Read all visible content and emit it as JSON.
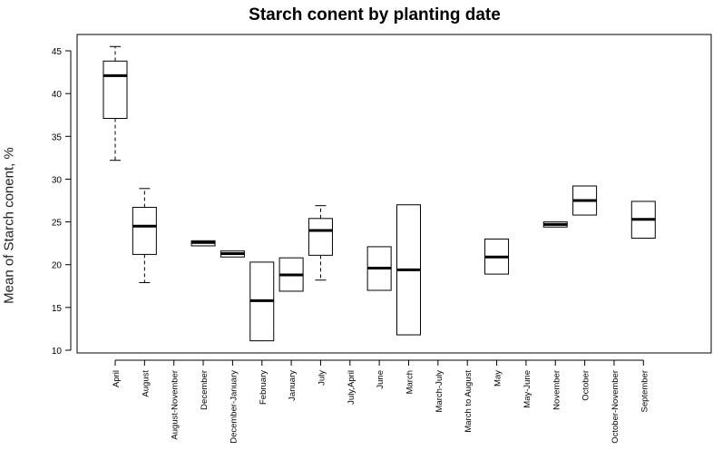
{
  "chart_data": {
    "type": "box",
    "title": "Starch conent by planting date",
    "xlabel": "",
    "ylabel": "Mean of Starch conent, %",
    "ylim": [
      10,
      46
    ],
    "y_ticks": [
      10,
      15,
      20,
      25,
      30,
      35,
      40,
      45
    ],
    "grid": false,
    "legend": "none",
    "colors": {
      "box_fill": "#ffffff",
      "stroke": "#000000",
      "median": "#000000"
    },
    "categories": [
      "April",
      "August",
      "August-November",
      "December",
      "December-January",
      "February",
      "January",
      "July",
      "July,April",
      "June",
      "March",
      "March-July",
      "March to August",
      "May",
      "May-June",
      "November",
      "October",
      "October-November",
      "September"
    ],
    "boxes": [
      {
        "category": "April",
        "whisker_low": 32.2,
        "q1": 37.1,
        "median": 42.1,
        "q3": 43.8,
        "whisker_high": 45.5
      },
      {
        "category": "August",
        "whisker_low": 17.9,
        "q1": 21.2,
        "median": 24.5,
        "q3": 26.7,
        "whisker_high": 28.9
      },
      {
        "category": "August-November",
        "whisker_low": null,
        "q1": null,
        "median": null,
        "q3": null,
        "whisker_high": null
      },
      {
        "category": "December",
        "whisker_low": 22.2,
        "q1": 22.2,
        "median": 22.6,
        "q3": 22.8,
        "whisker_high": 22.8
      },
      {
        "category": "December-January",
        "whisker_low": 20.9,
        "q1": 20.9,
        "median": 21.3,
        "q3": 21.6,
        "whisker_high": 21.6
      },
      {
        "category": "February",
        "whisker_low": 11.1,
        "q1": 11.1,
        "median": 15.8,
        "q3": 20.3,
        "whisker_high": 20.3
      },
      {
        "category": "January",
        "whisker_low": 16.9,
        "q1": 16.9,
        "median": 18.8,
        "q3": 20.8,
        "whisker_high": 20.8
      },
      {
        "category": "July",
        "whisker_low": 18.2,
        "q1": 21.1,
        "median": 24.0,
        "q3": 25.4,
        "whisker_high": 26.9
      },
      {
        "category": "July,April",
        "whisker_low": null,
        "q1": null,
        "median": null,
        "q3": null,
        "whisker_high": null
      },
      {
        "category": "June",
        "whisker_low": 17.0,
        "q1": 17.0,
        "median": 19.6,
        "q3": 22.1,
        "whisker_high": 22.1
      },
      {
        "category": "March",
        "whisker_low": 11.8,
        "q1": 11.8,
        "median": 19.4,
        "q3": 27.0,
        "whisker_high": 27.0
      },
      {
        "category": "March-July",
        "whisker_low": null,
        "q1": null,
        "median": null,
        "q3": null,
        "whisker_high": null
      },
      {
        "category": "March to August",
        "whisker_low": null,
        "q1": null,
        "median": null,
        "q3": null,
        "whisker_high": null
      },
      {
        "category": "May",
        "whisker_low": 18.9,
        "q1": 18.9,
        "median": 20.9,
        "q3": 23.0,
        "whisker_high": 23.0
      },
      {
        "category": "May-June",
        "whisker_low": null,
        "q1": null,
        "median": null,
        "q3": null,
        "whisker_high": null
      },
      {
        "category": "November",
        "whisker_low": 24.4,
        "q1": 24.4,
        "median": 24.7,
        "q3": 25.0,
        "whisker_high": 25.0
      },
      {
        "category": "October",
        "whisker_low": 25.8,
        "q1": 25.8,
        "median": 27.5,
        "q3": 29.2,
        "whisker_high": 29.2
      },
      {
        "category": "October-November",
        "whisker_low": null,
        "q1": null,
        "median": null,
        "q3": null,
        "whisker_high": null
      },
      {
        "category": "September",
        "whisker_low": 23.1,
        "q1": 23.1,
        "median": 25.3,
        "q3": 27.4,
        "whisker_high": 27.4
      }
    ]
  }
}
